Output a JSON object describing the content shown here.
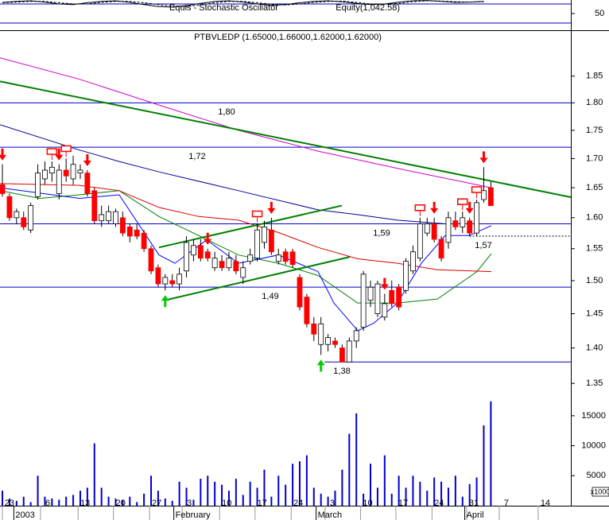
{
  "chart_data": {
    "type": "candlestick",
    "title": "PTBVLEDP (1.65000,1.66000,1.62000,1.62000)",
    "open": [
      1.655,
      1.635,
      1.6,
      1.6,
      1.58,
      1.635,
      1.665,
      1.675,
      1.64,
      1.68,
      1.665,
      1.675,
      1.675,
      1.645,
      1.595,
      1.595,
      1.59,
      1.6,
      1.585,
      1.58,
      1.575,
      1.55,
      1.52,
      1.495,
      1.5,
      1.495,
      1.515,
      1.54,
      1.555,
      1.545,
      1.52,
      1.53,
      1.52,
      1.53,
      1.505,
      1.53,
      1.535,
      1.56,
      1.58,
      1.53,
      1.545,
      1.545,
      1.505,
      1.475,
      1.435,
      1.405,
      1.405,
      1.41,
      1.4,
      1.38,
      1.41,
      1.43,
      1.47,
      1.45,
      1.445,
      1.485,
      1.49,
      1.485,
      1.515,
      1.535,
      1.575,
      1.59,
      1.565,
      1.56,
      1.595,
      1.585,
      1.595,
      1.575,
      1.63,
      1.65
    ],
    "high": [
      1.69,
      1.64,
      1.615,
      1.61,
      1.625,
      1.69,
      1.695,
      1.695,
      1.69,
      1.7,
      1.705,
      1.69,
      1.68,
      1.65,
      1.62,
      1.62,
      1.615,
      1.61,
      1.59,
      1.59,
      1.58,
      1.555,
      1.525,
      1.51,
      1.51,
      1.52,
      1.57,
      1.565,
      1.565,
      1.55,
      1.545,
      1.54,
      1.545,
      1.54,
      1.53,
      1.55,
      1.59,
      1.595,
      1.6,
      1.55,
      1.55,
      1.55,
      1.51,
      1.48,
      1.445,
      1.445,
      1.42,
      1.415,
      1.405,
      1.415,
      1.43,
      1.515,
      1.5,
      1.5,
      1.48,
      1.5,
      1.495,
      1.535,
      1.555,
      1.6,
      1.6,
      1.6,
      1.57,
      1.61,
      1.61,
      1.61,
      1.6,
      1.63,
      1.685,
      1.66
    ],
    "low": [
      1.635,
      1.595,
      1.59,
      1.58,
      1.575,
      1.63,
      1.655,
      1.66,
      1.63,
      1.66,
      1.655,
      1.665,
      1.635,
      1.59,
      1.585,
      1.59,
      1.585,
      1.57,
      1.56,
      1.565,
      1.545,
      1.51,
      1.49,
      1.485,
      1.49,
      1.485,
      1.505,
      1.53,
      1.53,
      1.53,
      1.515,
      1.515,
      1.515,
      1.51,
      1.495,
      1.525,
      1.53,
      1.55,
      1.54,
      1.525,
      1.525,
      1.52,
      1.455,
      1.43,
      1.41,
      1.39,
      1.395,
      1.4,
      1.38,
      1.38,
      1.4,
      1.425,
      1.46,
      1.445,
      1.44,
      1.46,
      1.455,
      1.48,
      1.51,
      1.53,
      1.57,
      1.56,
      1.53,
      1.55,
      1.58,
      1.575,
      1.57,
      1.57,
      1.625,
      1.62
    ],
    "close": [
      1.64,
      1.6,
      1.61,
      1.585,
      1.62,
      1.675,
      1.68,
      1.685,
      1.68,
      1.67,
      1.69,
      1.68,
      1.64,
      1.595,
      1.605,
      1.61,
      1.61,
      1.575,
      1.57,
      1.57,
      1.55,
      1.515,
      1.495,
      1.505,
      1.495,
      1.51,
      1.56,
      1.555,
      1.535,
      1.535,
      1.535,
      1.52,
      1.535,
      1.515,
      1.52,
      1.54,
      1.58,
      1.585,
      1.545,
      1.54,
      1.53,
      1.525,
      1.46,
      1.435,
      1.42,
      1.435,
      1.415,
      1.405,
      1.38,
      1.41,
      1.425,
      1.51,
      1.49,
      1.495,
      1.465,
      1.465,
      1.46,
      1.53,
      1.545,
      1.59,
      1.59,
      1.565,
      1.535,
      1.6,
      1.585,
      1.6,
      1.575,
      1.625,
      1.645,
      1.62
    ],
    "up_color": "#ffffff",
    "down_color": "#ff0000",
    "xlim": [
      -0.34,
      80.3
    ],
    "xticks": [
      {
        "value": 1.0,
        "label": "23"
      },
      {
        "value": 6.4,
        "label": "6"
      },
      {
        "value": 11.7,
        "label": "13"
      },
      {
        "value": 16.7,
        "label": "20"
      },
      {
        "value": 21.8,
        "label": "27"
      },
      {
        "value": 26.4,
        "label": "3"
      },
      {
        "value": 31.7,
        "label": "10"
      },
      {
        "value": 36.7,
        "label": "17"
      },
      {
        "value": 41.8,
        "label": "24"
      },
      {
        "value": 46.6,
        "label": "3"
      },
      {
        "value": 51.6,
        "label": "10"
      },
      {
        "value": 56.6,
        "label": "17"
      },
      {
        "value": 61.7,
        "label": "24"
      },
      {
        "value": 66.6,
        "label": "31"
      },
      {
        "value": 71.2,
        "label": "7"
      },
      {
        "value": 76.7,
        "label": "14"
      }
    ],
    "month_ticks": [
      {
        "value": 3.3,
        "label": "2003"
      },
      {
        "value": 25.9,
        "label": "February"
      },
      {
        "value": 46.0,
        "label": "March"
      },
      {
        "value": 67.0,
        "label": "April"
      }
    ],
    "ylim": [
      1.336,
      1.936
    ],
    "log_scale": true,
    "yticks": [
      1.85,
      {
        "value": 1.8,
        "label": "1.80"
      },
      1.75,
      {
        "value": 1.7,
        "label": "1.70"
      },
      1.65,
      {
        "value": 1.6,
        "label": "1.60"
      },
      1.55,
      {
        "value": 1.5,
        "label": "1.50"
      },
      1.45,
      {
        "value": 1.4,
        "label": "1.40"
      },
      1.35
    ],
    "moving_averages": [
      {
        "color": "#cc00cc",
        "x": [
          -0.34,
          10.89,
          22.12,
          33.35,
          44.58,
          55.8,
          67.04,
          69.3
        ],
        "values": [
          1.885,
          1.844,
          1.796,
          1.75,
          1.713,
          1.683,
          1.655,
          1.649
        ]
      },
      {
        "color": "#000099",
        "x": [
          -0.34,
          10.89,
          16.5,
          22.12,
          33.35,
          44.58,
          50.2,
          55.8,
          62.55,
          69.07
        ],
        "values": [
          1.76,
          1.715,
          1.695,
          1.677,
          1.645,
          1.613,
          1.605,
          1.596,
          1.59,
          1.59
        ]
      },
      {
        "color": "#008000",
        "x": [
          -0.34,
          5.28,
          10.89,
          16.5,
          22.12,
          27.74,
          33.35,
          38.97,
          44.58,
          50.2,
          55.8,
          61.43,
          67.04,
          69.07
        ],
        "values": [
          1.645,
          1.632,
          1.638,
          1.645,
          1.602,
          1.571,
          1.54,
          1.527,
          1.508,
          1.466,
          1.466,
          1.472,
          1.514,
          1.542
        ]
      },
      {
        "color": "#dd0000",
        "x": [
          -0.34,
          10.89,
          16.5,
          22.12,
          27.74,
          33.35,
          38.97,
          44.58,
          50.2,
          55.8,
          61.43,
          69.07
        ],
        "values": [
          1.657,
          1.654,
          1.645,
          1.617,
          1.602,
          1.596,
          1.576,
          1.552,
          1.534,
          1.527,
          1.517,
          1.514
        ]
      },
      {
        "color": "#0000ff",
        "x": [
          -0.34,
          10.89,
          16.5,
          22.12,
          24.37,
          28.86,
          33.35,
          38.97,
          44.58,
          46.83,
          50.2,
          52.45,
          55.8,
          59.18,
          62.55,
          65.92,
          69.07
        ],
        "values": [
          1.65,
          1.632,
          1.638,
          1.54,
          1.527,
          1.564,
          1.527,
          1.54,
          1.514,
          1.466,
          1.425,
          1.436,
          1.466,
          1.527,
          1.571,
          1.571,
          1.587
        ]
      }
    ],
    "trendlines": [
      {
        "color": "#008000",
        "x": [
          -0.34,
          80.3
        ],
        "values": [
          1.84,
          1.634
        ]
      },
      {
        "color": "#008000",
        "x": [
          22.12,
          47.95
        ],
        "values": [
          1.552,
          1.62
        ]
      },
      {
        "color": "#008000",
        "x": [
          22.91,
          49.08
        ],
        "values": [
          1.47,
          1.537
        ]
      }
    ],
    "levels": [
      {
        "value": 1.8,
        "label": "1,80",
        "x": [
          -0.34,
          80.3
        ]
      },
      {
        "value": 1.72,
        "label": "1,72",
        "x": [
          -0.34,
          80.3
        ]
      },
      {
        "value": 1.59,
        "label": "1,59",
        "x": [
          -0.34,
          80.3
        ]
      },
      {
        "value": 1.49,
        "label": "1,49",
        "x": [
          -0.34,
          80.3
        ]
      },
      {
        "value": 1.38,
        "label": "1,38",
        "x": [
          45.5,
          80.3
        ]
      },
      {
        "value": 1.57,
        "label": "1,57",
        "x": [
          66.0,
          80.3
        ],
        "dashed": true
      }
    ],
    "level_color": "#0000cc",
    "sell_arrows": [
      0,
      8,
      12,
      29,
      38,
      54,
      61,
      66,
      68
    ],
    "buy_arrows": [
      23,
      45
    ],
    "exit_markers": [
      7,
      9,
      36,
      59,
      65,
      67
    ],
    "volume": {
      "color": "#0000cc",
      "unit_label": "x1000",
      "ylim": [
        0,
        18700
      ],
      "yticks": [
        5000,
        10000,
        15000
      ],
      "values": [
        2500,
        1200,
        800,
        1500,
        600,
        5000,
        1500,
        1200,
        1000,
        1500,
        1800,
        2500,
        3000,
        10400,
        3000,
        1500,
        1200,
        1000,
        1500,
        600,
        2000,
        5000,
        2500,
        1200,
        800,
        4000,
        3000,
        1000,
        4500,
        5000,
        4000,
        3500,
        2500,
        4500,
        1800,
        4000,
        3000,
        6000,
        1500,
        5000,
        3500,
        7000,
        7400,
        8400,
        3000,
        2000,
        1500,
        2500,
        6000,
        12000,
        15400,
        2000,
        7000,
        3000,
        8400,
        2000,
        5000,
        3000,
        5000,
        4000,
        2500,
        4700,
        4000,
        3000,
        5000,
        1500,
        3600,
        4700,
        13400,
        17400
      ]
    },
    "stochastic": {
      "title": "Equis - Stochastic Oscillator",
      "subtitle": "Equity(1,042.58)",
      "ylim": [
        -2.5,
        92.5
      ],
      "yticks": [
        50
      ],
      "levels": [
        80,
        20
      ],
      "level_color": "#0000cc",
      "x": [
        0,
        2,
        4,
        6,
        8,
        10,
        12,
        14,
        16,
        18,
        20,
        22,
        24,
        26,
        28,
        30,
        32,
        34,
        36,
        38,
        40,
        42,
        44,
        46,
        48,
        50,
        52,
        54,
        56,
        58,
        60,
        62,
        64,
        66,
        68
      ],
      "series": [
        {
          "color": "#000000",
          "dashed": false,
          "values": [
            85,
            88,
            90,
            86,
            80,
            78,
            84,
            88,
            90,
            85,
            78,
            72,
            70,
            75,
            82,
            88,
            90,
            86,
            80,
            76,
            78,
            84,
            88,
            90,
            87,
            82,
            78,
            80,
            86,
            90,
            91,
            88,
            85,
            86,
            88
          ]
        },
        {
          "color": "#000000",
          "dashed": true,
          "values": [
            84,
            86,
            88,
            88,
            84,
            80,
            80,
            85,
            88,
            88,
            84,
            78,
            73,
            72,
            77,
            84,
            88,
            88,
            84,
            79,
            77,
            80,
            85,
            88,
            89,
            85,
            80,
            79,
            82,
            87,
            90,
            89,
            87,
            86,
            87
          ]
        }
      ]
    }
  }
}
